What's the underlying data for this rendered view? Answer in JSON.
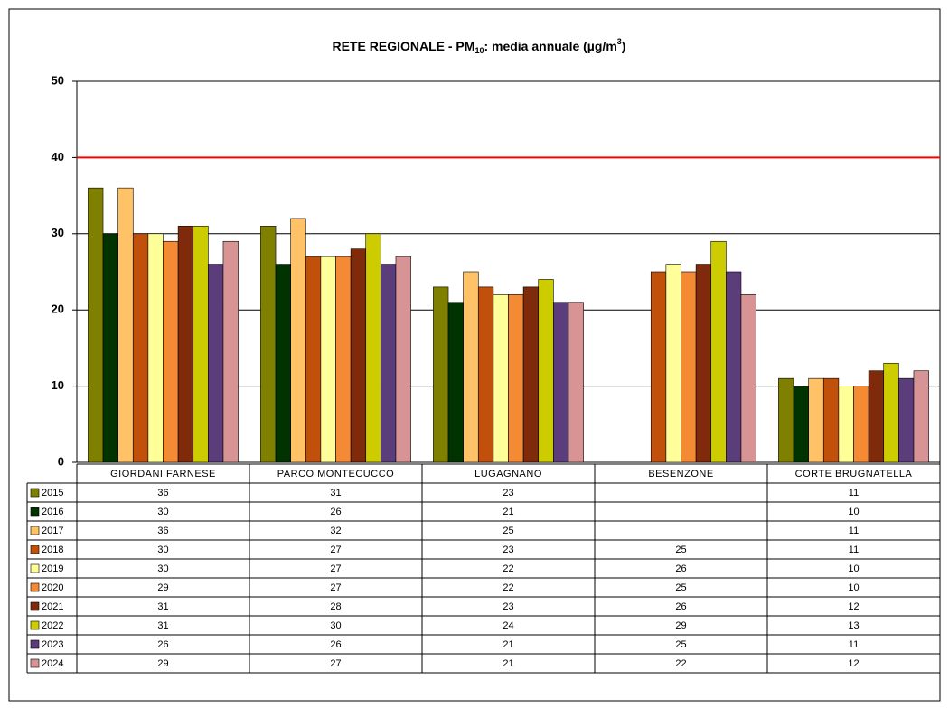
{
  "chart_data": {
    "type": "bar",
    "title": [
      "RETE REGIONALE - PM",
      "10",
      ": media annuale (µg/m",
      "3",
      ")"
    ],
    "categories": [
      "GIORDANI FARNESE",
      "PARCO MONTECUCCO",
      "LUGAGNANO",
      "BESENZONE",
      "CORTE BRUGNATELLA"
    ],
    "series": [
      {
        "name": "2015",
        "color": "#808000",
        "values": [
          36,
          31,
          23,
          null,
          11
        ]
      },
      {
        "name": "2016",
        "color": "#003300",
        "values": [
          30,
          26,
          21,
          null,
          10
        ]
      },
      {
        "name": "2017",
        "color": "#ffc266",
        "values": [
          36,
          32,
          25,
          null,
          11
        ]
      },
      {
        "name": "2018",
        "color": "#c0500a",
        "values": [
          30,
          27,
          23,
          25,
          11
        ]
      },
      {
        "name": "2019",
        "color": "#ffff99",
        "values": [
          30,
          27,
          22,
          26,
          10
        ]
      },
      {
        "name": "2020",
        "color": "#f58a34",
        "values": [
          29,
          27,
          22,
          25,
          10
        ]
      },
      {
        "name": "2021",
        "color": "#7f2a0a",
        "values": [
          31,
          28,
          23,
          26,
          12
        ]
      },
      {
        "name": "2022",
        "color": "#cccc00",
        "values": [
          31,
          30,
          24,
          29,
          13
        ]
      },
      {
        "name": "2023",
        "color": "#5a3d7a",
        "values": [
          26,
          26,
          21,
          25,
          11
        ]
      },
      {
        "name": "2024",
        "color": "#d89494",
        "values": [
          29,
          27,
          21,
          22,
          12
        ]
      }
    ],
    "ylim": [
      0,
      50
    ],
    "yticks": [
      0,
      10,
      20,
      30,
      40,
      50
    ],
    "grid": true,
    "limit_line": {
      "value": 40,
      "color": "#ff0000"
    }
  }
}
